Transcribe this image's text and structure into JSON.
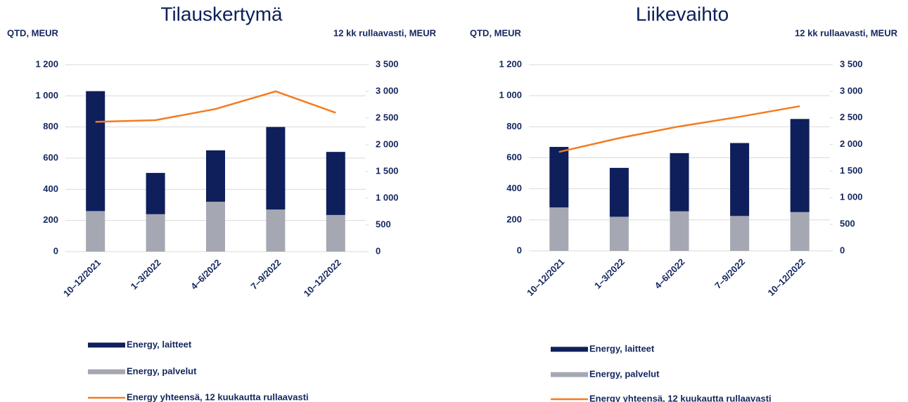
{
  "chart_data": [
    {
      "type": "bar",
      "title": "Tilauskertymä",
      "y_label": "QTD, MEUR",
      "y2_label": "12 kk rullaavasti, MEUR",
      "categories": [
        "10–12/2021",
        "1–3/2022",
        "4–6/2022",
        "7–9/2022",
        "10–12/2022"
      ],
      "series": [
        {
          "name": "Energy, laitteet",
          "color": "#0e1f5b",
          "values": [
            770,
            265,
            330,
            530,
            405
          ]
        },
        {
          "name": "Energy, palvelut",
          "color": "#a5a8b3",
          "values": [
            260,
            240,
            320,
            270,
            235
          ]
        },
        {
          "name": "Energy yhteensä, 12 kuukautta rullaavasti",
          "color": "#f47b20",
          "type": "line",
          "axis": "y2",
          "values": [
            2430,
            2460,
            2670,
            3000,
            2600
          ]
        }
      ],
      "stacked": true,
      "ylim": [
        0,
        1200
      ],
      "yticks": [
        0,
        200,
        400,
        600,
        800,
        {
          "value": 1000,
          "label": "1 000"
        },
        {
          "value": 1200,
          "label": "1 200"
        }
      ],
      "y2lim": [
        0,
        3500
      ],
      "y2ticks": [
        0,
        500,
        {
          "value": 1000,
          "label": "1 000"
        },
        {
          "value": 1500,
          "label": "1 500"
        },
        {
          "value": 2000,
          "label": "2 000"
        },
        {
          "value": 2500,
          "label": "2 500"
        },
        {
          "value": 3000,
          "label": "3 000"
        },
        {
          "value": 3500,
          "label": "3 500"
        }
      ],
      "grid": true,
      "legend": "bottom"
    },
    {
      "type": "bar",
      "title": "Liikevaihto",
      "y_label": "QTD, MEUR",
      "y2_label": "12 kk rullaavasti, MEUR",
      "categories": [
        "10–12/2021",
        "1–3/2022",
        "4–6/2022",
        "7–9/2022",
        "10–12/2022"
      ],
      "series": [
        {
          "name": "Energy, laitteet",
          "color": "#0e1f5b",
          "values": [
            390,
            315,
            375,
            470,
            600
          ]
        },
        {
          "name": "Energy, palvelut",
          "color": "#a5a8b3",
          "values": [
            280,
            220,
            255,
            225,
            250
          ]
        },
        {
          "name": "Energy yhteensä, 12 kuukautta rullaavasti",
          "color": "#f47b20",
          "type": "line",
          "axis": "y2",
          "values": [
            1860,
            2120,
            2340,
            2520,
            2720
          ]
        }
      ],
      "stacked": true,
      "ylim": [
        0,
        1200
      ],
      "yticks": [
        0,
        200,
        400,
        600,
        800,
        {
          "value": 1000,
          "label": "1 000"
        },
        {
          "value": 1200,
          "label": "1 200"
        }
      ],
      "y2lim": [
        0,
        3500
      ],
      "y2ticks": [
        0,
        500,
        {
          "value": 1000,
          "label": "1 000"
        },
        {
          "value": 1500,
          "label": "1 500"
        },
        {
          "value": 2000,
          "label": "2 000"
        },
        {
          "value": 2500,
          "label": "2 500"
        },
        {
          "value": 3000,
          "label": "3 000"
        },
        {
          "value": 3500,
          "label": "3 500"
        }
      ],
      "grid": true,
      "legend": "bottom"
    }
  ]
}
